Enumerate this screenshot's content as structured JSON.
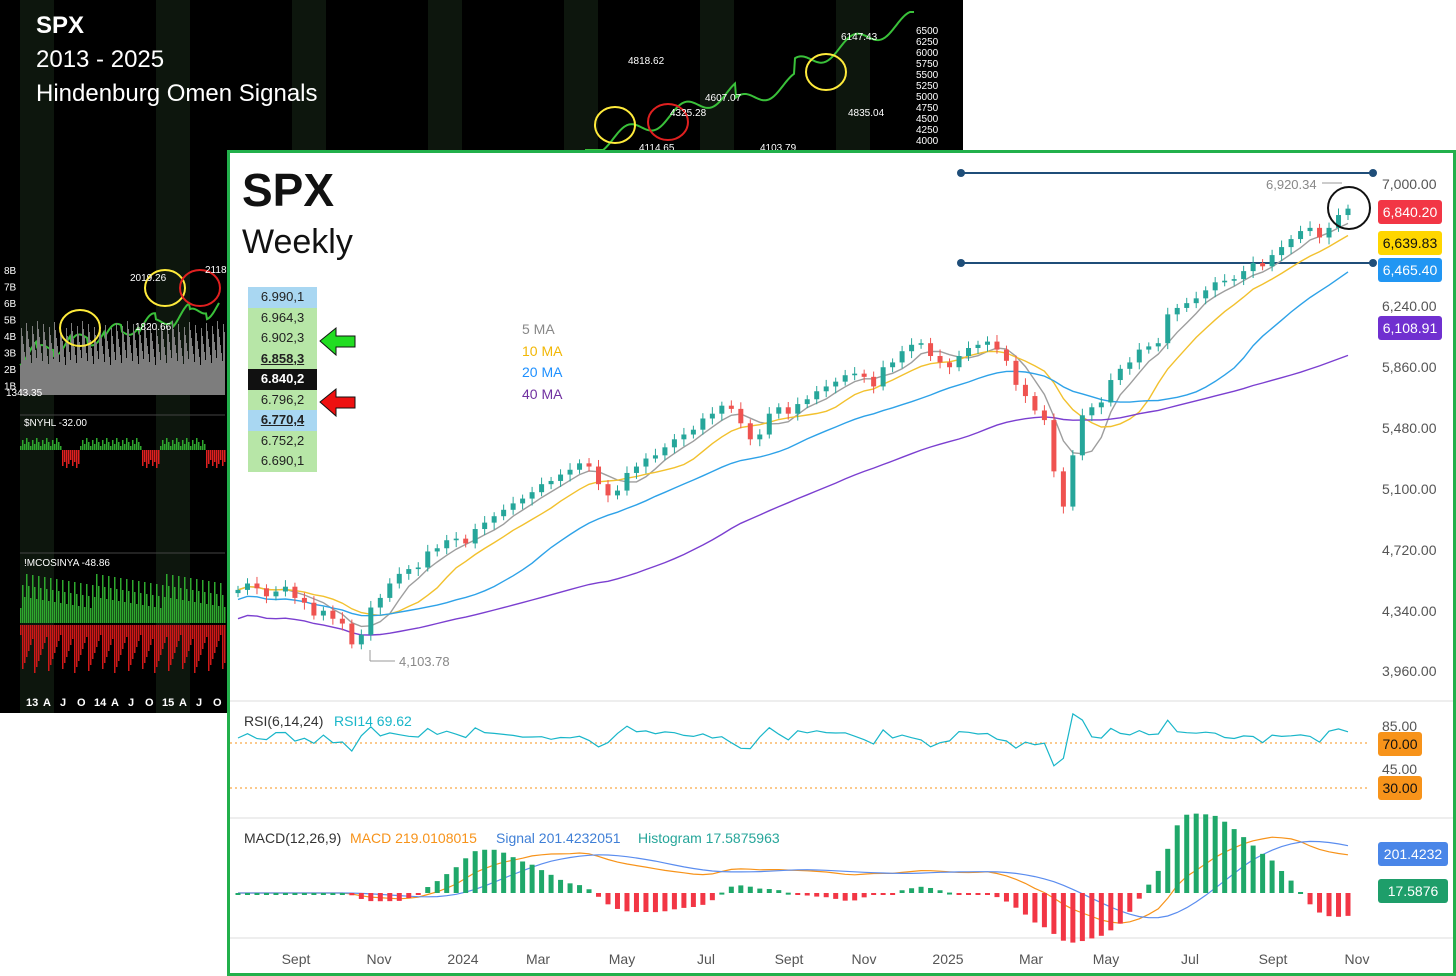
{
  "background_chart": {
    "title": "SPX",
    "subtitle_range": "2013 - 2025",
    "subtitle_signal": "Hindenburg Omen Signals",
    "volume_ticks": [
      "8B",
      "7B",
      "6B",
      "5B",
      "4B",
      "3B",
      "2B",
      "1B"
    ],
    "price_ticks": [
      "6920.34",
      "6840.20",
      "6500",
      "6250",
      "6000",
      "5750",
      "5500",
      "5250",
      "5000",
      "4750",
      "4500",
      "4250",
      "4000"
    ],
    "annotations": [
      "4818.62",
      "4325.28",
      "4114.65",
      "4607.07",
      "4103.79",
      "6147.43",
      "4835.04",
      "2019.26",
      "2118",
      "1820.66",
      "1343.35"
    ],
    "indicator_labels": [
      "$NYHL -32.00",
      "!MCOSINYA -48.86"
    ],
    "x_ticks": [
      "13",
      "A",
      "J",
      "O",
      "14",
      "A",
      "J",
      "O",
      "15",
      "A",
      "J",
      "O"
    ]
  },
  "main_chart": {
    "title": "SPX",
    "subtitle": "Weekly",
    "level_table": [
      {
        "value": "6.990,1",
        "style": "blue"
      },
      {
        "value": "6.964,3",
        "style": "green"
      },
      {
        "value": "6.902,3",
        "style": "green"
      },
      {
        "value": "6.858,3",
        "style": "green-bold"
      },
      {
        "value": "6.840,2",
        "style": "black"
      },
      {
        "value": "6.796,2",
        "style": "green"
      },
      {
        "value": "6.770,4",
        "style": "blue-bold"
      },
      {
        "value": "6.752,2",
        "style": "green"
      },
      {
        "value": "6.690,1",
        "style": "green"
      }
    ],
    "ma_legend": [
      {
        "label": "5 MA",
        "color": "#888888"
      },
      {
        "label": "10 MA",
        "color": "#f2b705"
      },
      {
        "label": "20 MA",
        "color": "#1e90ff"
      },
      {
        "label": "40 MA",
        "color": "#7030a0"
      }
    ],
    "price_axis": [
      "7,000.00",
      "6,240.00",
      "5,860.00",
      "5,480.00",
      "5,100.00",
      "4,720.00",
      "4,340.00",
      "3,960.00"
    ],
    "high_label": "6,920.34",
    "low_label": "4,103.78",
    "badges": [
      {
        "name": "last-price",
        "value": "6,840.20",
        "bg": "#f23645",
        "fg": "#ffffff"
      },
      {
        "name": "ma10",
        "value": "6,639.83",
        "bg": "#ffd600",
        "fg": "#111111"
      },
      {
        "name": "ma20",
        "value": "6,465.40",
        "bg": "#2196f3",
        "fg": "#ffffff"
      },
      {
        "name": "ma40",
        "value": "6,108.91",
        "bg": "#7030d0",
        "fg": "#ffffff"
      }
    ],
    "x_axis": [
      "Sept",
      "Nov",
      "2024",
      "Mar",
      "May",
      "Jul",
      "Sept",
      "Nov",
      "2025",
      "Mar",
      "May",
      "Jul",
      "Sept",
      "Nov"
    ],
    "rsi": {
      "label": "RSI(6,14,24)",
      "value_label": "RSI14 69.62",
      "axis": [
        "85.00",
        "45.00"
      ],
      "badge_upper": "70.00",
      "badge_lower": "30.00"
    },
    "macd": {
      "label": "MACD(12,26,9)",
      "macd_label": "MACD 219.0108015",
      "signal_label": "Signal 201.4232051",
      "hist_label": "Histogram 17.5875963",
      "badge_signal": "201.4232",
      "badge_hist": "17.5876"
    }
  },
  "chart_data": {
    "type": "candlestick",
    "title": "SPX",
    "subtitle": "Weekly",
    "y_range": [
      3960,
      7000
    ],
    "series": [
      {
        "name": "5 MA",
        "color": "#888888"
      },
      {
        "name": "10 MA",
        "color": "#f2b705"
      },
      {
        "name": "20 MA",
        "color": "#1e90ff"
      },
      {
        "name": "40 MA",
        "color": "#7030a0"
      }
    ],
    "closes": [
      4460,
      4500,
      4470,
      4420,
      4450,
      4480,
      4410,
      4380,
      4300,
      4330,
      4280,
      4250,
      4120,
      4180,
      4350,
      4410,
      4500,
      4560,
      4590,
      4600,
      4700,
      4720,
      4770,
      4780,
      4750,
      4840,
      4880,
      4920,
      4960,
      5000,
      5030,
      5070,
      5120,
      5140,
      5180,
      5210,
      5250,
      5230,
      5120,
      5050,
      5080,
      5190,
      5230,
      5280,
      5300,
      5350,
      5400,
      5430,
      5460,
      5530,
      5560,
      5610,
      5590,
      5500,
      5400,
      5430,
      5560,
      5600,
      5560,
      5620,
      5650,
      5700,
      5730,
      5760,
      5800,
      5810,
      5790,
      5730,
      5850,
      5880,
      5950,
      5990,
      6000,
      5920,
      5880,
      5850,
      5920,
      5970,
      5990,
      6010,
      5960,
      5890,
      5740,
      5670,
      5580,
      5520,
      5200,
      4980,
      5300,
      5550,
      5600,
      5630,
      5770,
      5840,
      5880,
      5960,
      5980,
      6000,
      6180,
      6220,
      6250,
      6280,
      6330,
      6380,
      6390,
      6400,
      6450,
      6500,
      6480,
      6550,
      6600,
      6650,
      6700,
      6720,
      6660,
      6720,
      6800,
      6840
    ],
    "high": 6920.34,
    "low": 4103.78,
    "last": 6840.2,
    "ma_last": {
      "10 MA": 6639.83,
      "20 MA": 6465.4,
      "40 MA": 6108.91
    },
    "rsi14_last": 69.62,
    "macd_last": 219.0108015,
    "signal_last": 201.4232051,
    "histogram_last": 17.5875963
  }
}
